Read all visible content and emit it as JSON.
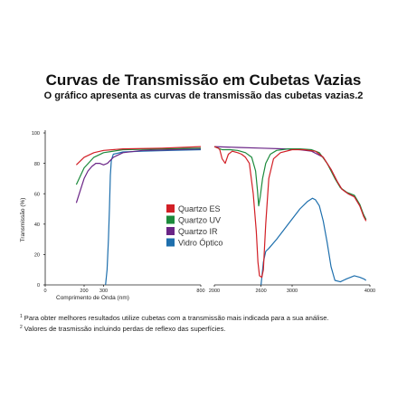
{
  "chart_data": {
    "type": "line",
    "title": "Curvas de Transmissão em Cubetas Vazias",
    "subtitle": "O gráfico apresenta as curvas de transmissão das cubetas vazias.2",
    "xlabel": "Comprimento de Onda (nm)",
    "ylabel": "Transmissão (%)",
    "ylim": [
      0,
      100
    ],
    "y_ticks": [
      "0",
      "20",
      "40",
      "60",
      "80",
      "100"
    ],
    "x_ticks_left": [
      "0",
      "200",
      "300",
      "800"
    ],
    "x_ticks_right": [
      "2000",
      "2600",
      "3000",
      "4000"
    ],
    "x_tick_values_left": [
      0,
      200,
      300,
      800
    ],
    "x_tick_values_right": [
      2000,
      2600,
      3000,
      4000
    ],
    "xlim_left": [
      0,
      800
    ],
    "xlim_right": [
      2000,
      4000
    ],
    "grid": false,
    "legend_position": "center",
    "series": [
      {
        "name": "Quartzo ES",
        "color": "#d21f26",
        "left": [
          [
            160,
            79
          ],
          [
            200,
            84
          ],
          [
            250,
            87
          ],
          [
            300,
            88.5
          ],
          [
            400,
            89.5
          ],
          [
            600,
            90
          ],
          [
            800,
            91
          ]
        ],
        "right": [
          [
            2000,
            91
          ],
          [
            2050,
            90
          ],
          [
            2070,
            89
          ],
          [
            2100,
            83
          ],
          [
            2140,
            80
          ],
          [
            2180,
            86
          ],
          [
            2230,
            88
          ],
          [
            2300,
            87
          ],
          [
            2350,
            86
          ],
          [
            2400,
            84
          ],
          [
            2450,
            80
          ],
          [
            2500,
            60
          ],
          [
            2540,
            35
          ],
          [
            2560,
            15
          ],
          [
            2580,
            6
          ],
          [
            2610,
            5
          ],
          [
            2630,
            10
          ],
          [
            2660,
            40
          ],
          [
            2700,
            70
          ],
          [
            2760,
            83
          ],
          [
            2850,
            87
          ],
          [
            3000,
            89
          ],
          [
            3150,
            89
          ],
          [
            3300,
            88
          ],
          [
            3400,
            84
          ],
          [
            3500,
            76
          ],
          [
            3580,
            68
          ],
          [
            3640,
            63
          ],
          [
            3720,
            60
          ],
          [
            3800,
            58
          ],
          [
            3870,
            52
          ],
          [
            3920,
            45
          ],
          [
            3950,
            42
          ]
        ]
      },
      {
        "name": "Quartzo UV",
        "color": "#1c8a3c",
        "left": [
          [
            160,
            66
          ],
          [
            200,
            77
          ],
          [
            250,
            84
          ],
          [
            300,
            87
          ],
          [
            400,
            89
          ],
          [
            600,
            89.5
          ],
          [
            800,
            90
          ]
        ],
        "right": [
          [
            2000,
            91
          ],
          [
            2050,
            90
          ],
          [
            2100,
            89
          ],
          [
            2200,
            89
          ],
          [
            2300,
            88.5
          ],
          [
            2400,
            87
          ],
          [
            2480,
            84
          ],
          [
            2530,
            75
          ],
          [
            2555,
            62
          ],
          [
            2570,
            52
          ],
          [
            2590,
            58
          ],
          [
            2620,
            70
          ],
          [
            2660,
            80
          ],
          [
            2720,
            86
          ],
          [
            2800,
            88.5
          ],
          [
            2950,
            89.5
          ],
          [
            3100,
            89.5
          ],
          [
            3250,
            89
          ],
          [
            3350,
            87
          ],
          [
            3450,
            80
          ],
          [
            3550,
            70
          ],
          [
            3620,
            64
          ],
          [
            3700,
            61
          ],
          [
            3800,
            59
          ],
          [
            3870,
            53
          ],
          [
            3920,
            46
          ],
          [
            3950,
            43
          ]
        ]
      },
      {
        "name": "Quartzo IR",
        "color": "#6a2486",
        "left": [
          [
            160,
            54
          ],
          [
            180,
            62
          ],
          [
            200,
            70
          ],
          [
            220,
            75
          ],
          [
            240,
            78
          ],
          [
            260,
            80
          ],
          [
            280,
            80
          ],
          [
            300,
            79
          ],
          [
            320,
            80
          ],
          [
            350,
            84
          ],
          [
            400,
            87
          ],
          [
            500,
            88.5
          ],
          [
            650,
            89
          ],
          [
            800,
            89.5
          ]
        ],
        "right": [
          [
            2000,
            91
          ],
          [
            2300,
            90.5
          ],
          [
            2600,
            90
          ],
          [
            2900,
            89.5
          ],
          [
            3100,
            89
          ],
          [
            3250,
            88
          ],
          [
            3400,
            84
          ],
          [
            3500,
            76
          ],
          [
            3580,
            68
          ],
          [
            3640,
            63
          ],
          [
            3720,
            60
          ],
          [
            3800,
            58
          ],
          [
            3870,
            52
          ],
          [
            3920,
            46
          ],
          [
            3950,
            43
          ]
        ]
      },
      {
        "name": "Vidro Óptico",
        "color": "#1e6fad",
        "left": [
          [
            310,
            0
          ],
          [
            318,
            10
          ],
          [
            325,
            30
          ],
          [
            330,
            50
          ],
          [
            335,
            72
          ],
          [
            340,
            82
          ],
          [
            350,
            86
          ],
          [
            400,
            87.5
          ],
          [
            500,
            88
          ],
          [
            650,
            88.5
          ],
          [
            800,
            89
          ]
        ],
        "right": [
          [
            2600,
            0
          ],
          [
            2610,
            5
          ],
          [
            2630,
            15
          ],
          [
            2660,
            22
          ],
          [
            2700,
            24
          ],
          [
            2800,
            30
          ],
          [
            2950,
            40
          ],
          [
            3100,
            50
          ],
          [
            3200,
            55
          ],
          [
            3260,
            57
          ],
          [
            3300,
            56
          ],
          [
            3350,
            52
          ],
          [
            3400,
            42
          ],
          [
            3450,
            28
          ],
          [
            3500,
            12
          ],
          [
            3550,
            3
          ],
          [
            3620,
            2
          ],
          [
            3700,
            4
          ],
          [
            3800,
            6
          ],
          [
            3870,
            5
          ],
          [
            3920,
            4
          ],
          [
            3950,
            3
          ]
        ]
      }
    ],
    "footnotes": [
      {
        "mark": "1",
        "text": "Para obter melhores resultados utilize cubetas com a transmissão mais indicada para a sua análise."
      },
      {
        "mark": "2",
        "text": "Valores de trasmissão incluindo perdas de reflexo das superfícies."
      }
    ]
  }
}
